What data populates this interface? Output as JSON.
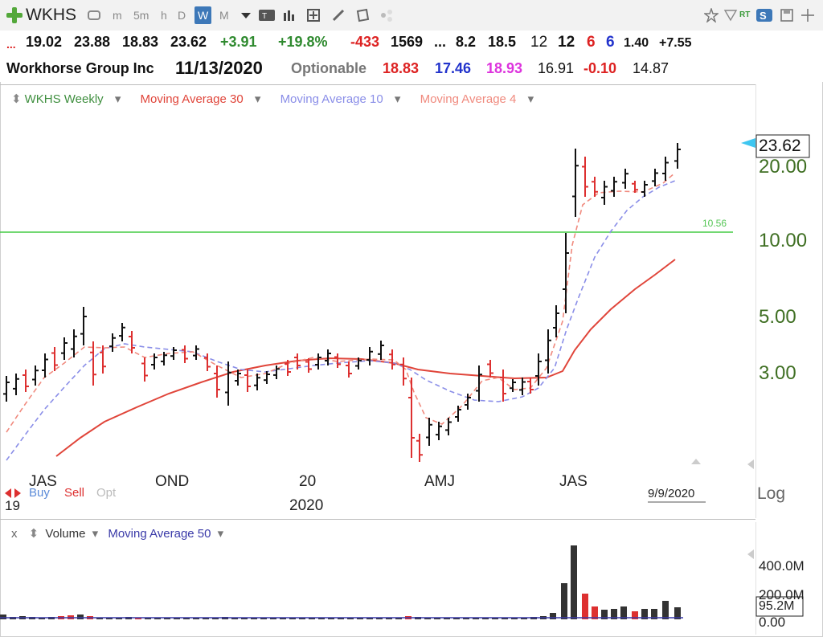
{
  "toolbar": {
    "symbol": "WKHS",
    "periods": [
      "m",
      "5m",
      "h",
      "D",
      "W",
      "M"
    ],
    "active_period": "W"
  },
  "quote": {
    "row1": {
      "open": "19.02",
      "high": "23.88",
      "low": "18.83",
      "close": "23.62",
      "change": "+3.91",
      "change_pct": "+19.8%",
      "neg_val": "-433",
      "val2": "1569",
      "ellipsis": "...",
      "v3": "8.2",
      "v4": "18.5",
      "v5": "12",
      "v6": "12",
      "v7": "6",
      "v8": "6",
      "v9": "1.40",
      "v10": "+7.55"
    },
    "row2": {
      "company": "Workhorse Group Inc",
      "date": "11/13/2020",
      "optionable": "Optionable",
      "a": "18.83",
      "b": "17.46",
      "c": "18.93",
      "d": "16.91",
      "e": "-0.10",
      "f": "14.87"
    }
  },
  "legend": {
    "symbol_weekly": "WKHS Weekly",
    "ma30": "Moving Average 30",
    "ma10": "Moving Average 10",
    "ma4": "Moving Average 4"
  },
  "price_axis": {
    "labels": [
      "20.00",
      "10.00",
      "5.00",
      "3.00"
    ],
    "current": "23.62",
    "line_value": "10.56",
    "scale": "Log"
  },
  "time_axis": {
    "labels": [
      "JAS",
      "OND",
      "20",
      "AMJ",
      "JAS"
    ],
    "year_labels": [
      "19",
      "2020"
    ],
    "date_marker": "9/9/2020"
  },
  "trade": {
    "buy": "Buy",
    "sell": "Sell",
    "opt": "Opt"
  },
  "volume": {
    "title": "Volume",
    "ma": "Moving Average 50",
    "close_x": "x",
    "labels": [
      "400.0M",
      "200.0M",
      "0.00"
    ],
    "current": "95.2M"
  },
  "colors": {
    "ma30": "#e0453a",
    "ma10": "#8a8ee8",
    "ma4": "#f08a7e",
    "level": "#44cc44",
    "up": "#111111",
    "down": "#dd3030",
    "label_green": "#3f6f23"
  }
}
